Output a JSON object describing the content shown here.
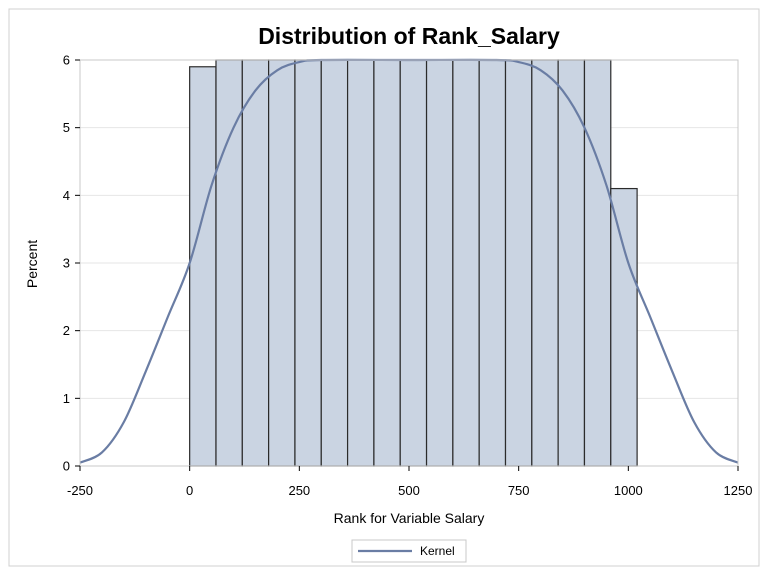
{
  "chart_data": {
    "type": "bar",
    "subtype": "histogram-with-kernel-density",
    "title": "Distribution of Rank_Salary",
    "xlabel": "Rank for Variable Salary",
    "ylabel": "Percent",
    "xlim": [
      -250,
      1250
    ],
    "ylim": [
      0,
      6
    ],
    "xticks": [
      -250,
      0,
      250,
      500,
      750,
      1000,
      1250
    ],
    "yticks": [
      0,
      1,
      2,
      3,
      4,
      5,
      6
    ],
    "xtick_labels": [
      "-250",
      "0",
      "250",
      "500",
      "750",
      "1000",
      "1250"
    ],
    "ytick_labels": [
      "0",
      "1",
      "2",
      "3",
      "4",
      "5",
      "6"
    ],
    "grid": "horizontal",
    "bin_width": 60,
    "bins": [
      {
        "x0": 0,
        "x1": 60,
        "value": 5.9
      },
      {
        "x0": 60,
        "x1": 120,
        "value": 6.0
      },
      {
        "x0": 120,
        "x1": 180,
        "value": 6.0
      },
      {
        "x0": 180,
        "x1": 240,
        "value": 6.0
      },
      {
        "x0": 240,
        "x1": 300,
        "value": 6.0
      },
      {
        "x0": 300,
        "x1": 360,
        "value": 6.0
      },
      {
        "x0": 360,
        "x1": 420,
        "value": 6.0
      },
      {
        "x0": 420,
        "x1": 480,
        "value": 6.0
      },
      {
        "x0": 480,
        "x1": 540,
        "value": 6.0
      },
      {
        "x0": 540,
        "x1": 600,
        "value": 6.0
      },
      {
        "x0": 600,
        "x1": 660,
        "value": 6.0
      },
      {
        "x0": 660,
        "x1": 720,
        "value": 6.0
      },
      {
        "x0": 720,
        "x1": 780,
        "value": 6.0
      },
      {
        "x0": 780,
        "x1": 840,
        "value": 6.0
      },
      {
        "x0": 840,
        "x1": 900,
        "value": 6.0
      },
      {
        "x0": 900,
        "x1": 960,
        "value": 6.0
      },
      {
        "x0": 960,
        "x1": 1020,
        "value": 4.1
      }
    ],
    "series": [
      {
        "name": "Kernel",
        "type": "line",
        "x": [
          -250,
          -200,
          -150,
          -100,
          -50,
          0,
          50,
          100,
          150,
          200,
          250,
          300,
          500,
          700,
          750,
          800,
          850,
          900,
          950,
          1000,
          1050,
          1100,
          1150,
          1200,
          1250
        ],
        "y": [
          0.05,
          0.2,
          0.65,
          1.4,
          2.2,
          3.0,
          4.15,
          5.0,
          5.55,
          5.85,
          5.97,
          6.0,
          6.0,
          6.0,
          5.97,
          5.85,
          5.55,
          5.0,
          4.15,
          3.0,
          2.2,
          1.4,
          0.65,
          0.2,
          0.05
        ]
      }
    ],
    "legend": {
      "position": "bottom-center",
      "entries": [
        "Kernel"
      ]
    },
    "colors": {
      "bar_fill": "#CAD4E2",
      "bar_stroke": "#2B2B2B",
      "kernel_line": "#6A7DA4",
      "grid": "#E6E6E6",
      "plot_border": "#C8C8C8",
      "outer_border": "#D0D0D0"
    }
  }
}
